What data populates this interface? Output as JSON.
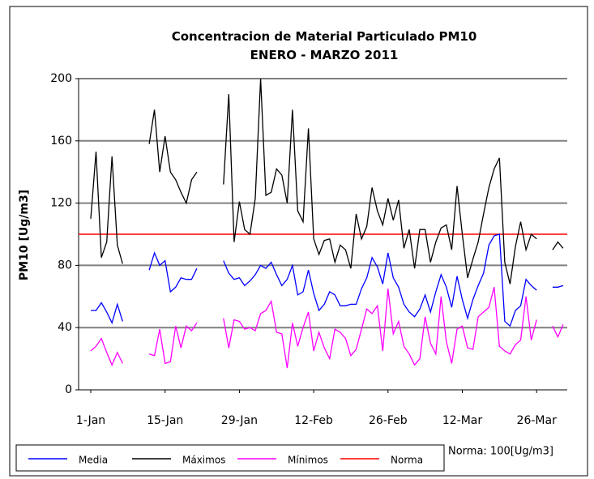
{
  "chart_data": {
    "type": "line",
    "title": "Concentracion de Material Particulado PM10  ENERO - MARZO 2011",
    "y_label": "PM10 [Ug/m3]",
    "annotation": "Norma: 100[Ug/m3]",
    "categories": [
      "1-Jan",
      null,
      null,
      null,
      null,
      null,
      null,
      null,
      null,
      null,
      null,
      null,
      null,
      null,
      "15-Jan",
      null,
      null,
      null,
      null,
      null,
      null,
      null,
      null,
      null,
      null,
      null,
      null,
      null,
      "29-Jan",
      null,
      null,
      null,
      null,
      null,
      null,
      null,
      null,
      null,
      null,
      null,
      null,
      null,
      "12-Feb",
      null,
      null,
      null,
      null,
      null,
      null,
      null,
      null,
      null,
      null,
      null,
      null,
      null,
      "26-Feb",
      null,
      null,
      null,
      null,
      null,
      null,
      null,
      null,
      null,
      null,
      null,
      null,
      null,
      "12-Mar",
      null,
      null,
      null,
      null,
      null,
      null,
      null,
      null,
      null,
      null,
      null,
      null,
      null,
      "26-Mar",
      null,
      null,
      null,
      null,
      null
    ],
    "series": [
      {
        "name": "Media",
        "color": "#0000ff",
        "values": [
          51,
          51,
          56,
          50,
          43,
          55,
          44,
          null,
          null,
          null,
          null,
          77,
          88,
          80,
          83,
          63,
          66,
          72,
          71,
          71,
          78,
          null,
          null,
          null,
          null,
          83,
          75,
          71,
          72,
          67,
          70,
          74,
          80,
          78,
          82,
          74,
          67,
          71,
          80,
          61,
          63,
          77,
          62,
          51,
          55,
          63,
          61,
          54,
          54,
          55,
          55,
          65,
          72,
          85,
          79,
          68,
          88,
          72,
          66,
          55,
          50,
          47,
          52,
          61,
          50,
          63,
          74,
          66,
          53,
          73,
          58,
          46,
          58,
          67,
          75,
          93,
          99,
          100,
          44,
          41,
          51,
          54,
          71,
          67,
          64,
          null,
          null,
          66,
          66,
          67
        ]
      },
      {
        "name": "Máximos",
        "color": "#000000",
        "values": [
          110,
          153,
          85,
          95,
          150,
          93,
          81,
          null,
          null,
          null,
          null,
          158,
          180,
          140,
          163,
          140,
          135,
          127,
          120,
          135,
          140,
          null,
          null,
          null,
          null,
          132,
          190,
          95,
          121,
          103,
          100,
          123,
          200,
          125,
          127,
          142,
          138,
          120,
          180,
          115,
          108,
          168,
          97,
          87,
          96,
          97,
          82,
          93,
          90,
          78,
          113,
          97,
          105,
          130,
          115,
          106,
          123,
          109,
          122,
          91,
          103,
          78,
          103,
          103,
          82,
          95,
          104,
          106,
          90,
          131,
          100,
          72,
          84,
          95,
          113,
          130,
          142,
          149,
          82,
          68,
          92,
          108,
          90,
          100,
          97,
          null,
          null,
          90,
          95,
          91
        ]
      },
      {
        "name": "Mínimos",
        "color": "#ff00ff",
        "values": [
          25,
          28,
          33,
          24,
          16,
          24,
          17,
          null,
          null,
          null,
          null,
          23,
          22,
          39,
          17,
          18,
          41,
          27,
          41,
          38,
          43,
          null,
          null,
          null,
          null,
          46,
          27,
          45,
          44,
          39,
          40,
          38,
          49,
          51,
          57,
          37,
          36,
          14,
          43,
          28,
          40,
          50,
          25,
          37,
          27,
          20,
          39,
          37,
          33,
          22,
          26,
          39,
          52,
          49,
          54,
          25,
          65,
          36,
          44,
          28,
          23,
          16,
          20,
          47,
          30,
          23,
          60,
          31,
          17,
          39,
          41,
          27,
          26,
          47,
          50,
          53,
          66,
          28,
          25,
          23,
          29,
          32,
          60,
          32,
          45,
          null,
          null,
          41,
          34,
          42
        ]
      }
    ],
    "reference_line": {
      "name": "Norma",
      "value": 100,
      "color": "#ff0000"
    },
    "ylim": [
      0,
      200
    ],
    "yticks": [
      0,
      40,
      80,
      120,
      160,
      200
    ],
    "grid": true
  }
}
